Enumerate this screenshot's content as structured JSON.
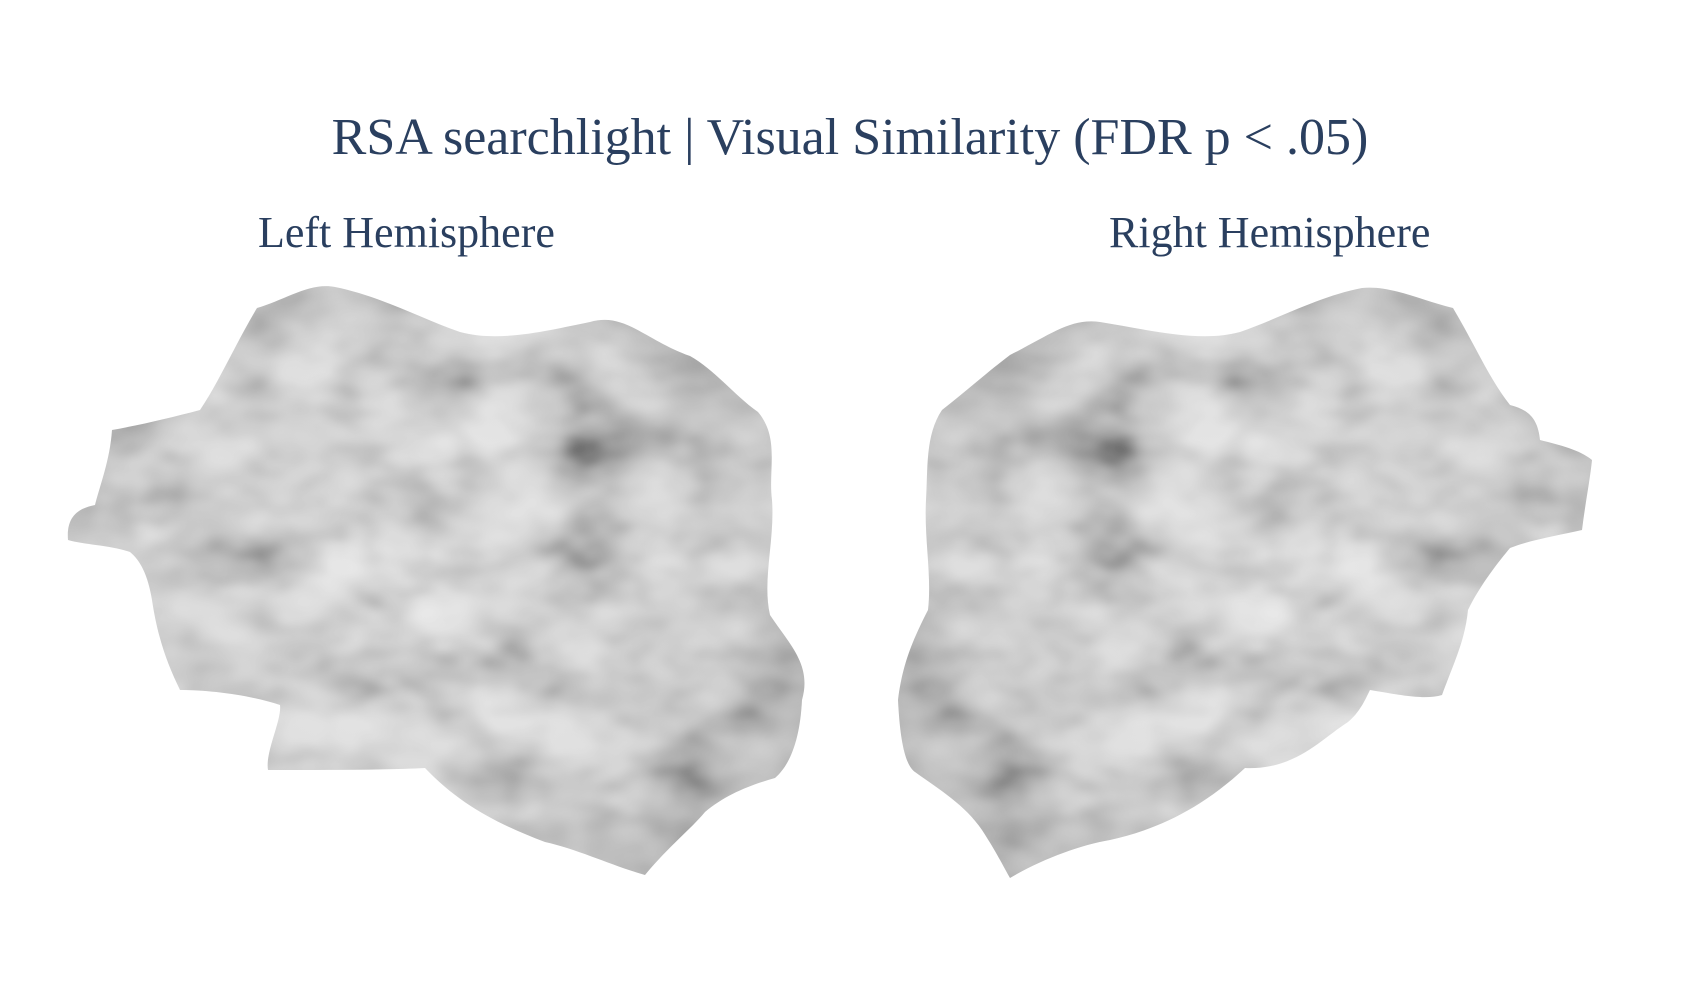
{
  "figure": {
    "title": "RSA searchlight | Visual Similarity (FDR p < .05)",
    "left_label": "Left Hemisphere",
    "right_label": "Right Hemisphere"
  },
  "colors": {
    "text": "#2a3f5f",
    "background": "#ffffff",
    "surface_light": "#f4f4f4",
    "surface_dark": "#6e6e6e"
  }
}
